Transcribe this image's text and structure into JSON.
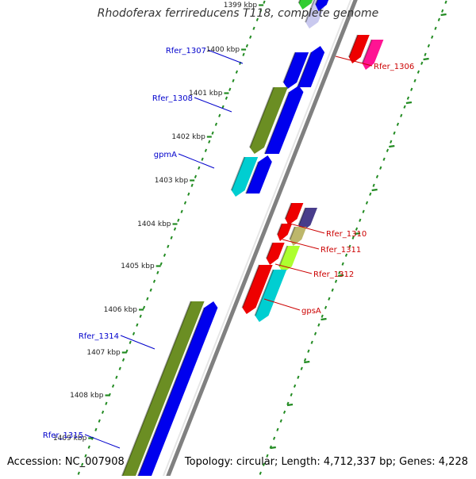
{
  "title": "Rhodoferax ferrireducens T118, complete genome",
  "footer": {
    "accession": "Accession: NC_007908",
    "summary": "Topology: circular; Length: 4,712,337 bp; Genes: 4,228"
  },
  "ticks": [
    {
      "label": "1399 kbp"
    },
    {
      "label": "1400 kbp"
    },
    {
      "label": "1401 kbp"
    },
    {
      "label": "1402 kbp"
    },
    {
      "label": "1403 kbp"
    },
    {
      "label": "1404 kbp"
    },
    {
      "label": "1405 kbp"
    },
    {
      "label": "1406 kbp"
    },
    {
      "label": "1407 kbp"
    },
    {
      "label": "1408 kbp"
    },
    {
      "label": "1409 kbp"
    }
  ],
  "left_genes": [
    {
      "name": "Rfer_1307"
    },
    {
      "name": "Rfer_1308"
    },
    {
      "name": "gpmA"
    },
    {
      "name": "Rfer_1314"
    },
    {
      "name": "Rfer_1315"
    }
  ],
  "right_genes": [
    {
      "name": "Rfer_1306"
    },
    {
      "name": "Rfer_1310"
    },
    {
      "name": "Rfer_1311"
    },
    {
      "name": "Rfer_1312"
    },
    {
      "name": "gpsA"
    }
  ],
  "colors": {
    "backbone": "#808080",
    "ruler": "#228B22",
    "left_label": "#0000CC",
    "right_label": "#CC0000",
    "cds_blue": "#0000EE",
    "cds_olive": "#6B8E23",
    "cds_cyan": "#00CED1",
    "cds_red": "#EE0000",
    "cds_pink": "#FF1493",
    "cds_slate": "#483D8B",
    "cds_khaki": "#BDB76B",
    "cds_lime": "#ADFF2F",
    "cds_green": "#32CD32"
  }
}
